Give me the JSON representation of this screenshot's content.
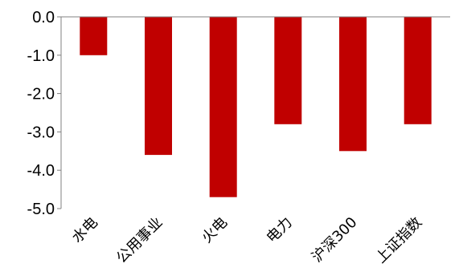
{
  "chart_data": {
    "type": "bar",
    "categories": [
      "水电",
      "公用事业",
      "火电",
      "电力",
      "沪深300",
      "上证指数"
    ],
    "values": [
      -1.0,
      -3.6,
      -4.7,
      -2.8,
      -3.5,
      -2.8
    ],
    "ylim": [
      -5.0,
      0.0
    ],
    "yticks": [
      0.0,
      -1.0,
      -2.0,
      -3.0,
      -4.0,
      -5.0
    ],
    "ytick_labels": [
      "0.0",
      "-1.0",
      "-2.0",
      "-3.0",
      "-4.0",
      "-5.0"
    ],
    "bar_color": "#C00000",
    "axis_color": "#808080",
    "grid": false,
    "title": "",
    "xlabel": "",
    "ylabel": ""
  }
}
